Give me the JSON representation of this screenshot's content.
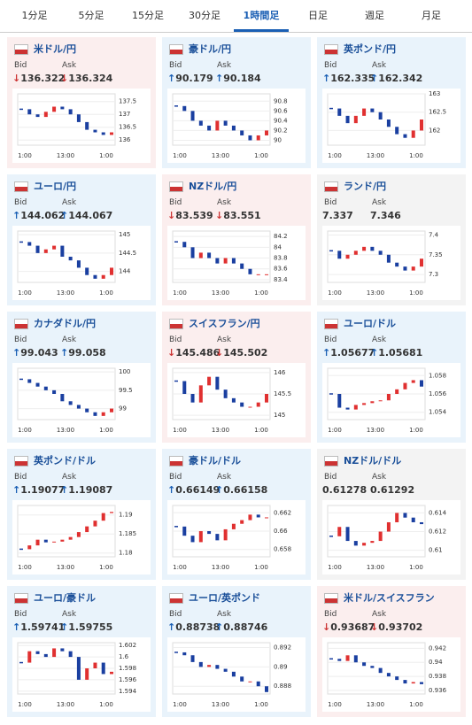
{
  "tabs": [
    "1分足",
    "5分足",
    "15分足",
    "30分足",
    "1時間足",
    "日足",
    "週足",
    "月足"
  ],
  "active_tab": 4,
  "labels": {
    "bid": "Bid",
    "ask": "Ask"
  },
  "chart_xlabels": [
    "1:00",
    "13:00",
    "1:00"
  ],
  "panels": [
    {
      "title": "米ドル/円",
      "arrow": "↓",
      "bid": "136.322",
      "ask": "136.324",
      "ylim": [
        135.8,
        137.8
      ],
      "yticks": [
        137.5,
        137,
        136.5,
        136
      ],
      "values": [
        137.2,
        137.0,
        136.9,
        137.1,
        137.3,
        137.2,
        137.0,
        136.7,
        136.4,
        136.3,
        136.2,
        136.3
      ]
    },
    {
      "title": "豪ドル/円",
      "arrow": "↑",
      "bid": "90.179",
      "ask": "90.184",
      "ylim": [
        89.9,
        90.95
      ],
      "yticks": [
        90.8,
        90.6,
        90.4,
        90.2,
        90
      ],
      "values": [
        90.7,
        90.6,
        90.4,
        90.3,
        90.2,
        90.4,
        90.3,
        90.2,
        90.1,
        90.0,
        90.1,
        90.2
      ]
    },
    {
      "title": "英ポンド/円",
      "arrow": "↑",
      "bid": "162.335",
      "ask": "162.342",
      "ylim": [
        161.6,
        163
      ],
      "yticks": [
        163,
        162.5,
        162
      ],
      "values": [
        162.6,
        162.4,
        162.2,
        162.4,
        162.6,
        162.5,
        162.3,
        162.1,
        161.9,
        161.8,
        162.0,
        162.3
      ]
    },
    {
      "title": "ユーロ/円",
      "arrow": "↑",
      "bid": "144.062",
      "ask": "144.067",
      "ylim": [
        143.7,
        145.1
      ],
      "yticks": [
        145,
        144.5,
        144
      ],
      "values": [
        144.8,
        144.7,
        144.5,
        144.6,
        144.7,
        144.4,
        144.3,
        144.1,
        143.9,
        143.8,
        143.9,
        144.1
      ]
    },
    {
      "title": "NZドル/円",
      "arrow": "↓",
      "bid": "83.539",
      "ask": "83.551",
      "ylim": [
        83.35,
        84.3
      ],
      "yticks": [
        84.2,
        84,
        83.8,
        83.6,
        83.4
      ],
      "values": [
        84.1,
        84.0,
        83.8,
        83.9,
        83.8,
        83.7,
        83.8,
        83.7,
        83.6,
        83.5,
        83.5,
        83.5
      ]
    },
    {
      "title": "ランド/円",
      "bid": "7.337",
      "ask": "7.346",
      "ylim": [
        7.28,
        7.41
      ],
      "yticks": [
        7.4,
        7.35,
        7.3
      ],
      "values": [
        7.36,
        7.34,
        7.35,
        7.36,
        7.37,
        7.36,
        7.35,
        7.33,
        7.32,
        7.31,
        7.32,
        7.34
      ]
    },
    {
      "title": "カナダドル/円",
      "arrow": "↑",
      "bid": "99.043",
      "ask": "99.058",
      "ylim": [
        98.7,
        100.1
      ],
      "yticks": [
        100,
        99.5,
        99
      ],
      "values": [
        99.8,
        99.7,
        99.6,
        99.5,
        99.4,
        99.2,
        99.1,
        99.0,
        98.9,
        98.8,
        98.9,
        99.0
      ]
    },
    {
      "title": "スイスフラン/円",
      "arrow": "↓",
      "bid": "145.486",
      "ask": "145.502",
      "ylim": [
        144.9,
        146.1
      ],
      "yticks": [
        146,
        145.5,
        145
      ],
      "values": [
        145.8,
        145.5,
        145.3,
        145.7,
        145.9,
        145.6,
        145.4,
        145.3,
        145.2,
        145.2,
        145.3,
        145.5
      ]
    },
    {
      "title": "ユーロ/ドル",
      "arrow": "↑",
      "bid": "1.05677",
      "ask": "1.05681",
      "ylim": [
        1.0532,
        1.0588
      ],
      "yticks": [
        1.058,
        1.056,
        1.054
      ],
      "values": [
        1.056,
        1.0545,
        1.0543,
        1.0548,
        1.055,
        1.0552,
        1.0553,
        1.056,
        1.0565,
        1.0572,
        1.0575,
        1.0568
      ]
    },
    {
      "title": "英ポンド/ドル",
      "arrow": "↑",
      "bid": "1.19077",
      "ask": "1.19087",
      "ylim": [
        1.179,
        1.1925
      ],
      "yticks": [
        1.19,
        1.185,
        1.18
      ],
      "values": [
        1.181,
        1.182,
        1.1835,
        1.1828,
        1.183,
        1.1835,
        1.1842,
        1.1855,
        1.187,
        1.1885,
        1.1905,
        1.1908
      ]
    },
    {
      "title": "豪ドル/ドル",
      "arrow": "↑",
      "bid": "0.66149",
      "ask": "0.66158",
      "ylim": [
        0.6572,
        0.6628
      ],
      "yticks": [
        0.662,
        0.66,
        0.658
      ],
      "values": [
        0.6605,
        0.6595,
        0.6588,
        0.66,
        0.6597,
        0.659,
        0.6602,
        0.6608,
        0.6612,
        0.6618,
        0.6615,
        0.6615
      ]
    },
    {
      "title": "NZドル/ドル",
      "bid": "0.61278",
      "ask": "0.61292",
      "ylim": [
        0.6093,
        0.6148
      ],
      "yticks": [
        0.614,
        0.612,
        0.61
      ],
      "values": [
        0.6115,
        0.6125,
        0.611,
        0.6105,
        0.6108,
        0.611,
        0.612,
        0.613,
        0.614,
        0.6135,
        0.613,
        0.6128
      ]
    },
    {
      "title": "ユーロ/豪ドル",
      "arrow": "↑",
      "bid": "1.59741",
      "ask": "1.59755",
      "ylim": [
        1.5935,
        1.6025
      ],
      "yticks": [
        1.602,
        1.6,
        1.598,
        1.596,
        1.594
      ],
      "values": [
        1.599,
        1.601,
        1.6005,
        1.6,
        1.6015,
        1.601,
        1.6,
        1.596,
        1.598,
        1.599,
        1.597,
        1.5974
      ]
    },
    {
      "title": "ユーロ/英ポンド",
      "arrow": "↑",
      "bid": "0.88738",
      "ask": "0.88746",
      "ylim": [
        0.8872,
        0.8925
      ],
      "yticks": [
        0.892,
        0.89,
        0.888
      ],
      "values": [
        0.8915,
        0.8912,
        0.8905,
        0.89,
        0.8902,
        0.8898,
        0.8895,
        0.889,
        0.8885,
        0.8885,
        0.888,
        0.8874
      ]
    },
    {
      "title": "米ドル/スイスフラン",
      "arrow": "↓",
      "bid": "0.93687",
      "ask": "0.93702",
      "ylim": [
        0.9355,
        0.9428
      ],
      "yticks": [
        0.942,
        0.94,
        0.938,
        0.936
      ],
      "values": [
        0.9405,
        0.9402,
        0.941,
        0.94,
        0.9395,
        0.9392,
        0.9385,
        0.938,
        0.9375,
        0.937,
        0.9372,
        0.9369
      ]
    }
  ]
}
